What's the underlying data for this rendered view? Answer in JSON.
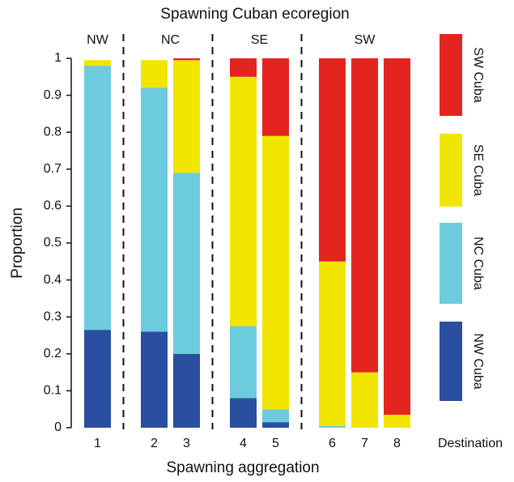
{
  "chart_data": {
    "type": "stacked-bar",
    "title": "Spawning Cuban ecoregion",
    "x_label": "Spawning aggregation",
    "x_axis_note": "Destination",
    "y_label": "Proportion",
    "groups": [
      {
        "name": "NW",
        "categories": [
          "1"
        ]
      },
      {
        "name": "NC",
        "categories": [
          "2",
          "3"
        ]
      },
      {
        "name": "SE",
        "categories": [
          "4",
          "5"
        ]
      },
      {
        "name": "SW",
        "categories": [
          "6",
          "7",
          "8"
        ]
      }
    ],
    "series": [
      {
        "name": "NW Cuba",
        "color": "#2a4fa0",
        "values": [
          0.265,
          0.26,
          0.2,
          0.08,
          0.015,
          0,
          0,
          0
        ]
      },
      {
        "name": "NC Cuba",
        "color": "#6ccbdc",
        "values": [
          0.715,
          0.66,
          0.49,
          0.195,
          0.035,
          0.005,
          0,
          0
        ]
      },
      {
        "name": "SE Cuba",
        "color": "#f2e500",
        "values": [
          0.015,
          0.075,
          0.305,
          0.675,
          0.74,
          0.445,
          0.15,
          0.035
        ]
      },
      {
        "name": "SW Cuba",
        "color": "#e52420",
        "values": [
          0,
          0,
          0.005,
          0.05,
          0.21,
          0.55,
          0.85,
          0.965
        ]
      }
    ],
    "ylim": [
      0,
      1
    ],
    "yticks": [
      0,
      0.1,
      0.2,
      0.3,
      0.4,
      0.5,
      0.6,
      0.7,
      0.8,
      0.9,
      1
    ],
    "grid": false
  }
}
